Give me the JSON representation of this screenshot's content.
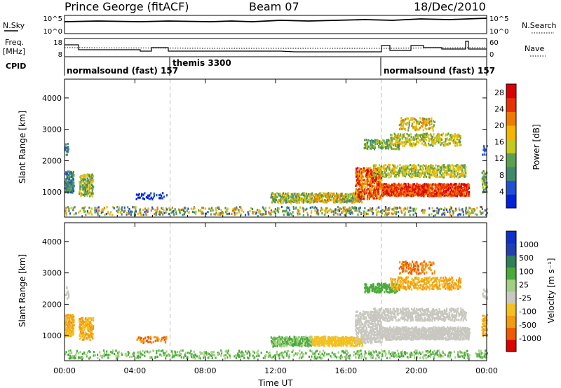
{
  "header": {
    "station": "Prince George (fitACF)",
    "beam": "Beam 07",
    "date": "18/Dec/2010"
  },
  "top_panels": {
    "nsky_label": "N.Sky",
    "nsky_ticks": [
      "10^5",
      "10^0"
    ],
    "nsearch_label": "N.Search",
    "nsearch_ticks": [
      "10^5",
      "10^0"
    ],
    "freq_label_line1": "Freq.",
    "freq_label_line2": "[MHz]",
    "freq_ticks": [
      "18",
      "8"
    ],
    "nave_label": "Nave",
    "nave_ticks": [
      "60",
      "0"
    ],
    "cpid_label": "CPID",
    "cpid_segments": [
      "normalsound (fast) 157",
      "themis 3300",
      "normalsound (fast) 157"
    ]
  },
  "colors": {
    "power_scale": [
      "#0022dd",
      "#1f4fd6",
      "#3f8a6a",
      "#5aa04f",
      "#c6c820",
      "#f5b400",
      "#f07a00",
      "#e83000",
      "#dd0000"
    ],
    "velocity_scale": [
      "#dd0000",
      "#ef5a00",
      "#f39a10",
      "#f3c020",
      "#c8c8c0",
      "#a0d080",
      "#4aaa3a",
      "#2e7f5a",
      "#2040b0",
      "#1030cc"
    ]
  },
  "chart_data": [
    {
      "type": "heatmap",
      "name": "power",
      "xlabel": "",
      "ylabel": "Slant Range [km]",
      "x_ticks": [
        "00:00",
        "04:00",
        "08:00",
        "12:00",
        "16:00",
        "20:00",
        "00:00"
      ],
      "xlim_hours": [
        0,
        24
      ],
      "y_ticks": [
        1000,
        2000,
        3000,
        4000
      ],
      "ylim_km": [
        200,
        4600
      ],
      "colorbar_label": "Power [dB]",
      "colorbar_ticks": [
        4,
        8,
        12,
        16,
        20,
        24,
        28
      ],
      "colorbar_range": [
        0,
        30
      ]
    },
    {
      "type": "heatmap",
      "name": "velocity",
      "xlabel": "Time UT",
      "ylabel": "Slant Range [km]",
      "x_ticks": [
        "00:00",
        "04:00",
        "08:00",
        "12:00",
        "16:00",
        "20:00",
        "00:00"
      ],
      "xlim_hours": [
        0,
        24
      ],
      "y_ticks": [
        1000,
        2000,
        3000,
        4000
      ],
      "ylim_km": [
        200,
        4600
      ],
      "colorbar_label": "Velocity [m s⁻¹]",
      "colorbar_ticks": [
        "1000",
        "500",
        "100",
        "25",
        "-25",
        "-100",
        "-500",
        "-1000"
      ]
    }
  ]
}
